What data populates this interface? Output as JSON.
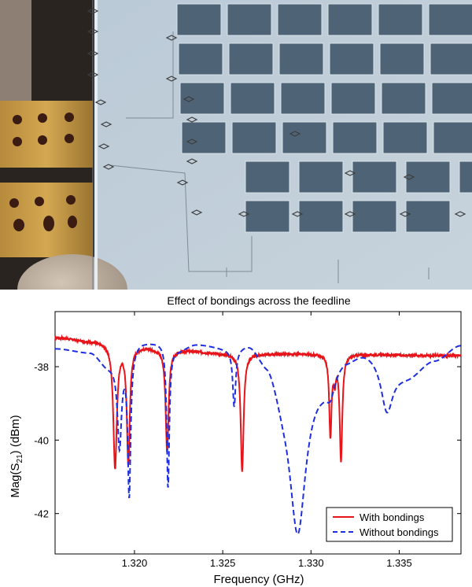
{
  "figure": {
    "photo_alt": "Photograph of detector chip with wire bondings across the feedline"
  },
  "chart_data": {
    "type": "line",
    "title": "Effect of bondings across the feedline",
    "xlabel": "Frequency (GHz)",
    "ylabel_main": "Mag(S",
    "ylabel_sub": "21",
    "ylabel_tail": ") (dBm)",
    "xlim": [
      1.3155,
      1.3385
    ],
    "ylim": [
      -43.1,
      -36.5
    ],
    "x_ticks": [
      1.32,
      1.325,
      1.33,
      1.335
    ],
    "x_tick_labels": [
      "1.320",
      "1.325",
      "1.330",
      "1.335"
    ],
    "y_ticks": [
      -38,
      -40,
      -42
    ],
    "y_tick_labels": [
      "-38",
      "-40",
      "-42"
    ],
    "grid": false,
    "legend_position": "bottom-right",
    "series": [
      {
        "name": "With bondings",
        "color": "#e8141a",
        "style": "solid",
        "baseline": [
          [
            1.3155,
            -37.2
          ],
          [
            1.3175,
            -37.3
          ],
          [
            1.32,
            -37.45
          ],
          [
            1.3225,
            -37.55
          ],
          [
            1.3255,
            -37.65
          ],
          [
            1.33,
            -37.65
          ],
          [
            1.3385,
            -37.7
          ]
        ],
        "dips": [
          {
            "f": 1.3189,
            "depth": 3.35,
            "w": 0.00012
          },
          {
            "f": 1.31965,
            "depth": 3.15,
            "w": 0.0001
          },
          {
            "f": 1.32185,
            "depth": 2.8,
            "w": 0.0001
          },
          {
            "f": 1.3261,
            "depth": 3.2,
            "w": 0.0001
          },
          {
            "f": 1.32105,
            "depth": 0.0,
            "w": 0.0001
          },
          {
            "f": 1.3311,
            "depth": 2.2,
            "w": 8e-05
          },
          {
            "f": 1.3317,
            "depth": 2.85,
            "w": 9e-05
          },
          {
            "f": 1.33135,
            "depth": 0.6,
            "w": 8e-05
          }
        ]
      },
      {
        "name": "Without bondings",
        "color": "#1e2ee0",
        "style": "dashed",
        "baseline": [
          [
            1.3155,
            -37.5
          ],
          [
            1.3175,
            -37.6
          ],
          [
            1.3185,
            -37.95
          ],
          [
            1.3205,
            -37.3
          ],
          [
            1.3215,
            -37.3
          ],
          [
            1.3225,
            -37.5
          ],
          [
            1.3235,
            -37.35
          ],
          [
            1.3255,
            -37.45
          ],
          [
            1.3265,
            -37.3
          ],
          [
            1.3275,
            -37.7
          ],
          [
            1.3285,
            -38.5
          ],
          [
            1.3305,
            -38.3
          ],
          [
            1.332,
            -37.7
          ],
          [
            1.333,
            -37.55
          ],
          [
            1.3355,
            -38.2
          ],
          [
            1.337,
            -37.8
          ],
          [
            1.3385,
            -37.4
          ]
        ],
        "dips": [
          {
            "f": 1.31915,
            "depth": 2.35,
            "w": 0.00014
          },
          {
            "f": 1.3197,
            "depth": 3.9,
            "w": 0.0001
          },
          {
            "f": 1.3219,
            "depth": 3.9,
            "w": 9e-05
          },
          {
            "f": 1.32565,
            "depth": 1.55,
            "w": 0.0001
          },
          {
            "f": 1.32925,
            "depth": 4.1,
            "w": 0.00055
          },
          {
            "f": 1.3311,
            "depth": 0.5,
            "w": 0.0003
          },
          {
            "f": 1.3343,
            "depth": 1.3,
            "w": 0.0004
          }
        ]
      }
    ]
  }
}
